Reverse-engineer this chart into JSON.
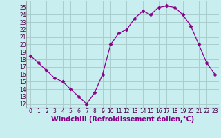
{
  "x": [
    0,
    1,
    2,
    3,
    4,
    5,
    6,
    7,
    8,
    9,
    10,
    11,
    12,
    13,
    14,
    15,
    16,
    17,
    18,
    19,
    20,
    21,
    22,
    23
  ],
  "y": [
    18.5,
    17.5,
    16.5,
    15.5,
    15.0,
    14.0,
    13.0,
    12.0,
    13.5,
    16.0,
    20.0,
    21.5,
    22.0,
    23.5,
    24.5,
    24.0,
    25.0,
    25.2,
    25.0,
    24.0,
    22.5,
    20.0,
    17.5,
    16.0
  ],
  "line_color": "#880088",
  "marker": "D",
  "marker_size": 2.5,
  "bg_color": "#c8eef0",
  "grid_color": "#aacccc",
  "xlabel": "Windchill (Refroidissement éolien,°C)",
  "xlabel_color": "#880088",
  "ylim": [
    11.5,
    25.8
  ],
  "yticks": [
    12,
    13,
    14,
    15,
    16,
    17,
    18,
    19,
    20,
    21,
    22,
    23,
    24,
    25
  ],
  "xlim": [
    -0.5,
    23.5
  ],
  "xticks": [
    0,
    1,
    2,
    3,
    4,
    5,
    6,
    7,
    8,
    9,
    10,
    11,
    12,
    13,
    14,
    15,
    16,
    17,
    18,
    19,
    20,
    21,
    22,
    23
  ],
  "tick_fontsize": 5.5,
  "xlabel_fontsize": 7.0
}
